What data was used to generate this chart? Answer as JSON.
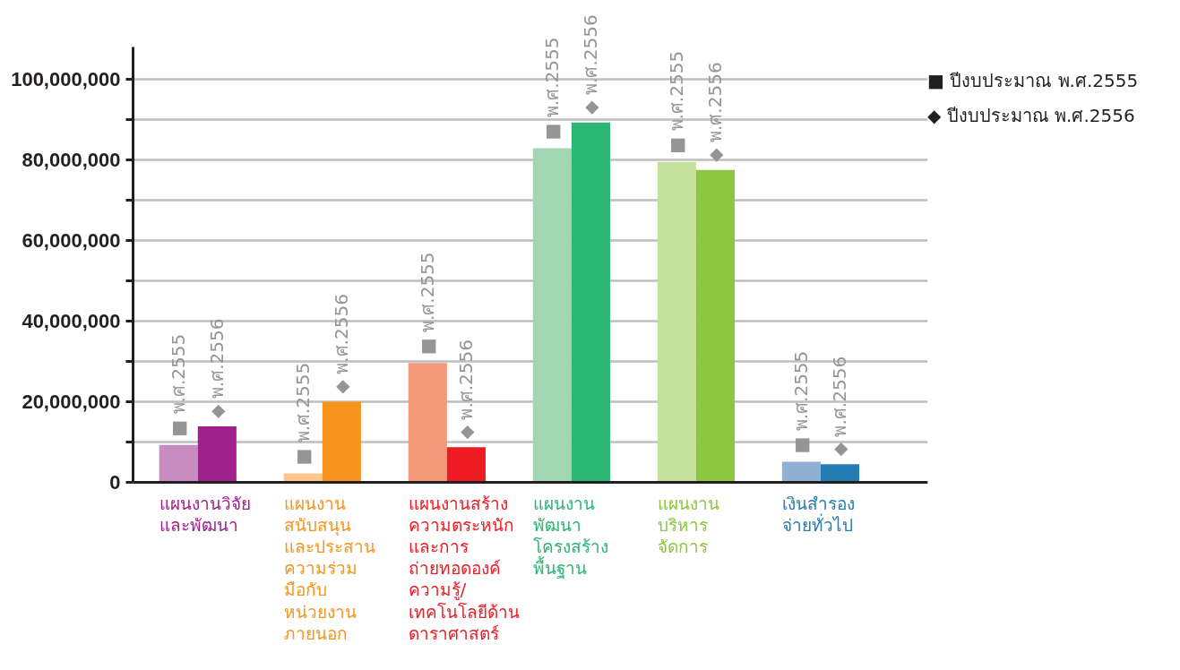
{
  "chart_data": {
    "type": "bar",
    "categories": [
      "แผนงานวิจัย\nและพัฒนา",
      "แผนงาน\nสนับสนุน\nและประสาน\nความร่วม\nมือกับ\nหน่วยงาน\nภายนอก",
      "แผนงานสร้าง\nความตระหนัก\nและการ\nถ่ายทอดองค์\nความรู้/\nเทคโนโลยีด้าน\nดาราศาสตร์",
      "แผนงาน\nพัฒนา\nโครงสร้าง\nพื้นฐาน",
      "แผนงาน\nบริหาร\nจัดการ",
      "เงินสำรอง\nจ่ายทั่วไป"
    ],
    "series": [
      {
        "name": "■ ปีงบประมาณ พ.ศ.2555",
        "colors": [
          "#c88dc0",
          "#fdc68a",
          "#f4987a",
          "#a4d5b3",
          "#c4df9b",
          "#8fb1d4"
        ],
        "values": [
          9300000,
          2200000,
          29600000,
          82900000,
          79500000,
          5100000
        ],
        "value_labels": [
          "■ พ.ศ.2555",
          "■ พ.ศ.2555",
          "■ พ.ศ.2555",
          "■ พ.ศ.2555",
          "■ พ.ศ.2555",
          "■ พ.ศ.2555"
        ]
      },
      {
        "name": "◆ ปีงบประมาณ พ.ศ.2556",
        "colors": [
          "#a0218c",
          "#f7941d",
          "#ed1c24",
          "#2bb673",
          "#8dc63f",
          "#237db3"
        ],
        "values": [
          13900000,
          20000000,
          8700000,
          89300000,
          77500000,
          4500000
        ],
        "value_labels": [
          "◆ พ.ศ.2556",
          "◆ พ.ศ.2556",
          "◆ พ.ศ.2556",
          "◆ พ.ศ.2556",
          "◆ พ.ศ.2556",
          "◆ พ.ศ.2556"
        ]
      }
    ],
    "ylim": [
      0,
      108000000
    ],
    "yticks": [
      0,
      {
        "value": 10000000,
        "label": null
      },
      {
        "value": 20000000,
        "label": "20,000,000"
      },
      {
        "value": 30000000,
        "label": null
      },
      {
        "value": 40000000,
        "label": "40,000,000"
      },
      {
        "value": 50000000,
        "label": null
      },
      {
        "value": 60000000,
        "label": "60,000,000"
      },
      {
        "value": 70000000,
        "label": null
      },
      {
        "value": 80000000,
        "label": "80,000,000"
      },
      {
        "value": 90000000,
        "label": null
      },
      {
        "value": 100000000,
        "label": "100,000,000"
      }
    ],
    "grid": "y",
    "legend": "top right"
  }
}
